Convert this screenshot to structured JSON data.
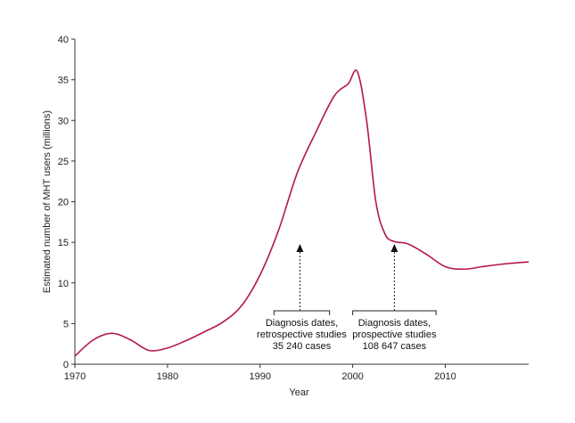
{
  "chart_data": {
    "type": "line",
    "title": "",
    "xlabel": "Year",
    "ylabel": "Estimated number of MHT users (millions)",
    "xlim": [
      1970,
      2019
    ],
    "ylim": [
      0,
      40
    ],
    "x_ticks": [
      1970,
      1980,
      1990,
      2000,
      2010
    ],
    "y_ticks": [
      0,
      5,
      10,
      15,
      20,
      25,
      30,
      35,
      40
    ],
    "grid": false,
    "colors": {
      "line": "#b5174d",
      "axis": "#333333"
    },
    "series": [
      {
        "x": [
          1970,
          1972,
          1974,
          1976,
          1978,
          1980,
          1982,
          1984,
          1986,
          1988,
          1990,
          1992,
          1994,
          1996,
          1998,
          1999.5,
          2000.5,
          2001.5,
          2002.5,
          2003.5,
          2004.5,
          2006,
          2008,
          2010,
          2012,
          2014,
          2016,
          2019
        ],
        "values": [
          1.0,
          3.0,
          3.8,
          3.0,
          1.7,
          2.0,
          2.9,
          4.0,
          5.2,
          7.2,
          11.0,
          16.5,
          23.5,
          28.5,
          33.0,
          34.5,
          36.0,
          30.0,
          20.0,
          16.0,
          15.1,
          14.8,
          13.5,
          12.0,
          11.7,
          12.0,
          12.3,
          12.6
        ]
      }
    ],
    "annotations": [
      {
        "lines": [
          "Diagnosis dates,",
          "retrospective studies",
          "35 240 cases"
        ],
        "range": [
          1991.5,
          1997.5
        ],
        "arrow_x": 1994.3,
        "arrow_tip_y": 14.8
      },
      {
        "lines": [
          "Diagnosis dates,",
          "prospective studies",
          "108 647 cases"
        ],
        "range": [
          2000,
          2009
        ],
        "arrow_x": 2004.5,
        "arrow_tip_y": 14.8
      }
    ]
  }
}
